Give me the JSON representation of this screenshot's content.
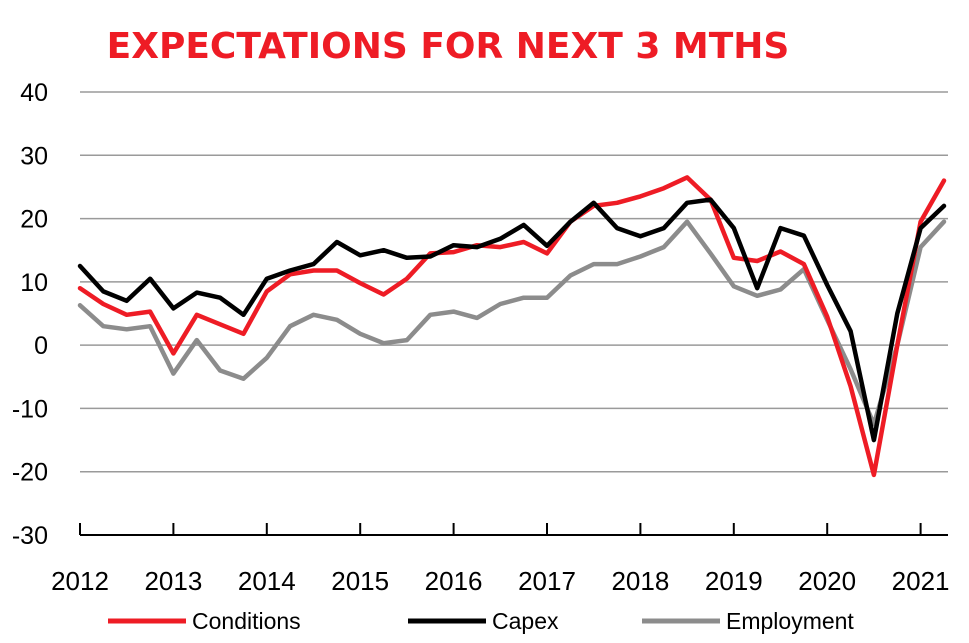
{
  "chart_data": {
    "type": "line",
    "title": "EXPECTATIONS FOR NEXT 3 MTHS",
    "xlabel": "",
    "ylabel": "",
    "ylim": [
      -30,
      40
    ],
    "yticks": [
      "40",
      "30",
      "20",
      "10",
      "0",
      "-10",
      "-20",
      "-30"
    ],
    "grid": true,
    "legend_position": "bottom",
    "x_tick_labels": [
      "2012",
      "2013",
      "2014",
      "2015",
      "2016",
      "2017",
      "2018",
      "2019",
      "2020",
      "2021"
    ],
    "x": [
      "2012Q1",
      "2012Q2",
      "2012Q3",
      "2012Q4",
      "2013Q1",
      "2013Q2",
      "2013Q3",
      "2013Q4",
      "2014Q1",
      "2014Q2",
      "2014Q3",
      "2014Q4",
      "2015Q1",
      "2015Q2",
      "2015Q3",
      "2015Q4",
      "2016Q1",
      "2016Q2",
      "2016Q3",
      "2016Q4",
      "2017Q1",
      "2017Q2",
      "2017Q3",
      "2017Q4",
      "2018Q1",
      "2018Q2",
      "2018Q3",
      "2018Q4",
      "2019Q1",
      "2019Q2",
      "2019Q3",
      "2019Q4",
      "2020Q1",
      "2020Q2",
      "2020Q3",
      "2020Q4",
      "2021Q1",
      "2021Q2"
    ],
    "series": [
      {
        "name": "Conditions",
        "color": "#ee1c25",
        "values": [
          9,
          6.5,
          4.8,
          5.3,
          -1.3,
          4.8,
          3.3,
          1.8,
          8.5,
          11.2,
          11.8,
          11.8,
          9.8,
          8,
          10.5,
          14.5,
          14.7,
          15.8,
          15.5,
          16.3,
          14.5,
          19.5,
          22,
          22.5,
          23.5,
          24.8,
          26.5,
          23,
          13.8,
          13.3,
          14.8,
          12.8,
          4.5,
          -6.5,
          -20.5,
          0,
          19.5,
          26
        ]
      },
      {
        "name": "Capex",
        "color": "#000000",
        "values": [
          12.5,
          8.5,
          7,
          10.5,
          5.8,
          8.3,
          7.5,
          4.8,
          10.5,
          11.8,
          12.8,
          16.3,
          14.2,
          15,
          13.8,
          14,
          15.8,
          15.5,
          16.8,
          19,
          15.7,
          19.5,
          22.5,
          18.5,
          17.2,
          18.5,
          22.5,
          23,
          18.5,
          9,
          18.5,
          17.3,
          9.5,
          2.2,
          -15,
          5,
          18.5,
          22
        ]
      },
      {
        "name": "Employment",
        "color": "#8c8c8c",
        "values": [
          6.3,
          3,
          2.5,
          3,
          -4.5,
          0.8,
          -4,
          -5.3,
          -2,
          3,
          4.8,
          4,
          1.8,
          0.3,
          0.8,
          4.8,
          5.3,
          4.3,
          6.5,
          7.5,
          7.5,
          11,
          12.8,
          12.8,
          14,
          15.5,
          19.5,
          14.5,
          9.3,
          7.8,
          8.8,
          12,
          4,
          -3.8,
          -12.5,
          0,
          15.5,
          19.5
        ]
      }
    ]
  }
}
